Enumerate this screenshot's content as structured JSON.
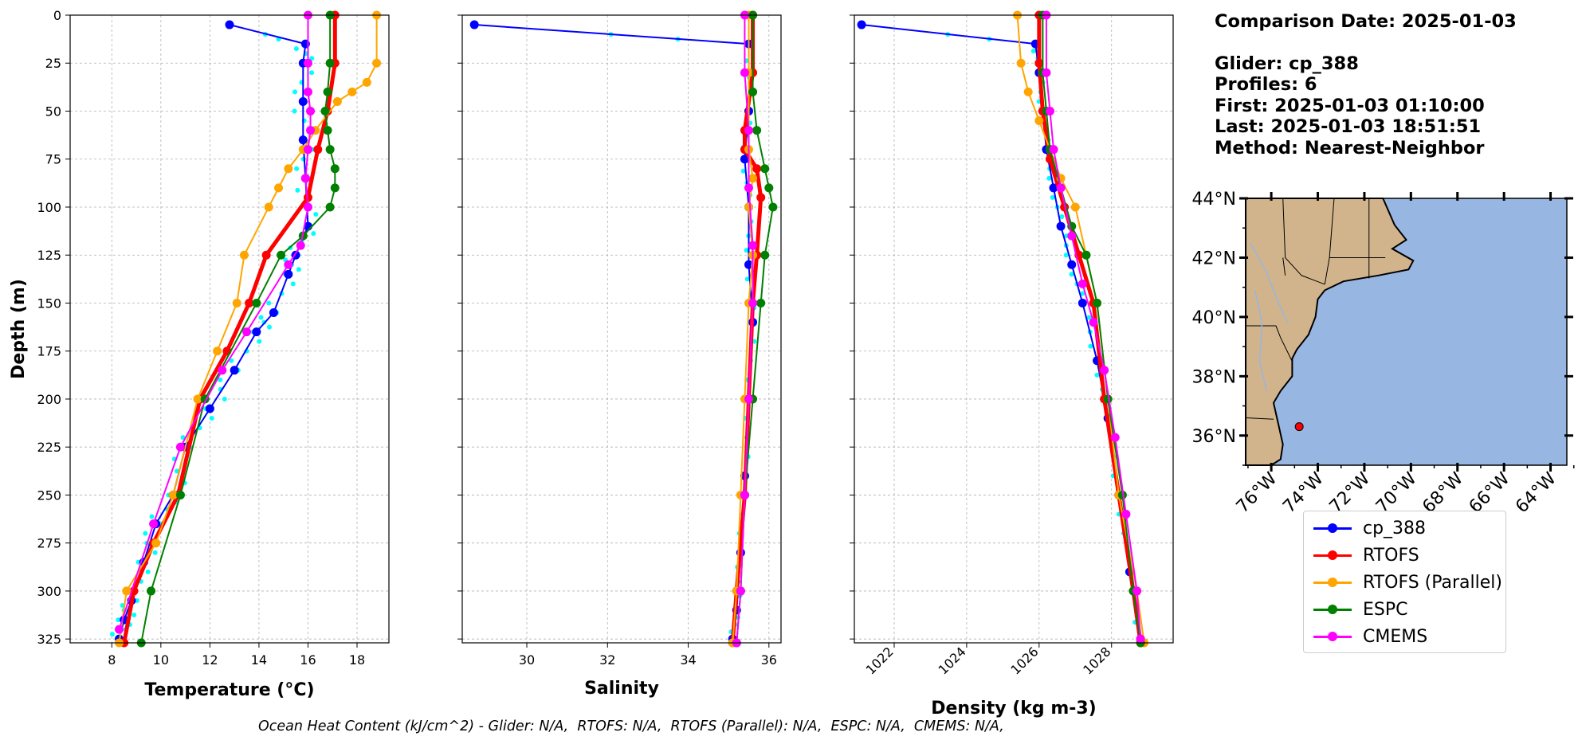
{
  "chart_data": [
    {
      "type": "line",
      "panel": "temperature",
      "xlabel": "Temperature (°C)",
      "ylabel": "Depth (m)",
      "xlim": [
        6.3,
        19.3
      ],
      "ylim": [
        327,
        0
      ],
      "y_inverted": true,
      "xticks": [
        8,
        10,
        12,
        14,
        16,
        18
      ],
      "yticks": [
        0,
        25,
        50,
        75,
        100,
        125,
        150,
        175,
        200,
        225,
        250,
        275,
        300,
        325
      ],
      "grid": true,
      "series": [
        {
          "name": "cp_388",
          "color": "#0000ff",
          "points": [
            [
              12.8,
              5
            ],
            [
              15.9,
              15
            ],
            [
              15.8,
              25
            ],
            [
              15.8,
              45
            ],
            [
              15.8,
              65
            ],
            [
              15.9,
              85
            ],
            [
              16.0,
              110
            ],
            [
              15.5,
              125
            ],
            [
              15.2,
              135
            ],
            [
              14.6,
              155
            ],
            [
              13.9,
              165
            ],
            [
              13.0,
              185
            ],
            [
              12.0,
              205
            ],
            [
              11.0,
              225
            ],
            [
              10.5,
              250
            ],
            [
              9.8,
              265
            ],
            [
              9.3,
              285
            ],
            [
              8.8,
              305
            ],
            [
              8.5,
              315
            ],
            [
              8.3,
              325
            ]
          ]
        },
        {
          "name": "RTOFS",
          "color": "#ff0000",
          "points": [
            [
              17.1,
              0
            ],
            [
              17.1,
              25
            ],
            [
              16.8,
              50
            ],
            [
              16.4,
              70
            ],
            [
              16.0,
              95
            ],
            [
              14.3,
              125
            ],
            [
              13.6,
              150
            ],
            [
              12.7,
              175
            ],
            [
              11.6,
              200
            ],
            [
              10.7,
              250
            ],
            [
              9.7,
              275
            ],
            [
              8.9,
              300
            ],
            [
              8.5,
              327
            ]
          ]
        },
        {
          "name": "RTOFS (Parallel)",
          "color": "#ffa500",
          "points": [
            [
              18.8,
              0
            ],
            [
              18.8,
              25
            ],
            [
              18.4,
              35
            ],
            [
              17.8,
              40
            ],
            [
              17.2,
              45
            ],
            [
              16.3,
              60
            ],
            [
              15.8,
              70
            ],
            [
              15.2,
              80
            ],
            [
              14.8,
              90
            ],
            [
              14.4,
              100
            ],
            [
              13.4,
              125
            ],
            [
              13.1,
              150
            ],
            [
              12.3,
              175
            ],
            [
              11.5,
              200
            ],
            [
              10.5,
              250
            ],
            [
              9.8,
              275
            ],
            [
              8.6,
              300
            ],
            [
              8.3,
              327
            ]
          ]
        },
        {
          "name": "ESPC",
          "color": "#008000",
          "points": [
            [
              16.9,
              0
            ],
            [
              16.9,
              25
            ],
            [
              16.8,
              40
            ],
            [
              16.7,
              50
            ],
            [
              16.8,
              60
            ],
            [
              16.9,
              70
            ],
            [
              17.1,
              80
            ],
            [
              17.1,
              90
            ],
            [
              16.9,
              100
            ],
            [
              15.8,
              115
            ],
            [
              14.9,
              125
            ],
            [
              13.9,
              150
            ],
            [
              11.8,
              200
            ],
            [
              10.8,
              250
            ],
            [
              9.6,
              300
            ],
            [
              9.2,
              327
            ]
          ]
        },
        {
          "name": "CMEMS",
          "color": "#ff00ff",
          "points": [
            [
              16.0,
              0
            ],
            [
              16.0,
              25
            ],
            [
              16.0,
              40
            ],
            [
              16.1,
              50
            ],
            [
              16.1,
              60
            ],
            [
              16.0,
              70
            ],
            [
              15.9,
              85
            ],
            [
              16.0,
              100
            ],
            [
              15.7,
              120
            ],
            [
              15.2,
              130
            ],
            [
              13.5,
              165
            ],
            [
              12.5,
              185
            ],
            [
              10.8,
              225
            ],
            [
              9.7,
              265
            ],
            [
              8.3,
              320
            ]
          ]
        }
      ]
    },
    {
      "type": "line",
      "panel": "salinity",
      "xlabel": "Salinity",
      "ylim": [
        327,
        0
      ],
      "xlim": [
        28.4,
        36.3
      ],
      "xticks": [
        30,
        32,
        34,
        36
      ],
      "grid": true,
      "series": [
        {
          "name": "cp_388",
          "color": "#0000ff",
          "points": [
            [
              28.7,
              5
            ],
            [
              35.5,
              15
            ],
            [
              35.5,
              50
            ],
            [
              35.4,
              75
            ],
            [
              35.5,
              100
            ],
            [
              35.5,
              130
            ],
            [
              35.6,
              160
            ],
            [
              35.5,
              200
            ],
            [
              35.4,
              240
            ],
            [
              35.3,
              280
            ],
            [
              35.2,
              310
            ],
            [
              35.1,
              325
            ]
          ]
        },
        {
          "name": "RTOFS",
          "color": "#ff0000",
          "points": [
            [
              35.6,
              0
            ],
            [
              35.6,
              30
            ],
            [
              35.4,
              60
            ],
            [
              35.4,
              70
            ],
            [
              35.7,
              80
            ],
            [
              35.8,
              95
            ],
            [
              35.7,
              125
            ],
            [
              35.6,
              150
            ],
            [
              35.5,
              200
            ],
            [
              35.4,
              250
            ],
            [
              35.2,
              300
            ],
            [
              35.1,
              327
            ]
          ]
        },
        {
          "name": "RTOFS (Parallel)",
          "color": "#ffa500",
          "points": [
            [
              35.5,
              0
            ],
            [
              35.5,
              30
            ],
            [
              35.5,
              70
            ],
            [
              35.6,
              85
            ],
            [
              35.5,
              100
            ],
            [
              35.6,
              125
            ],
            [
              35.5,
              150
            ],
            [
              35.4,
              200
            ],
            [
              35.3,
              250
            ],
            [
              35.2,
              300
            ],
            [
              35.1,
              327
            ]
          ]
        },
        {
          "name": "ESPC",
          "color": "#008000",
          "points": [
            [
              35.6,
              0
            ],
            [
              35.6,
              40
            ],
            [
              35.7,
              60
            ],
            [
              35.9,
              80
            ],
            [
              36.0,
              90
            ],
            [
              36.1,
              100
            ],
            [
              35.9,
              125
            ],
            [
              35.8,
              150
            ],
            [
              35.6,
              200
            ],
            [
              35.4,
              250
            ],
            [
              35.3,
              300
            ],
            [
              35.2,
              327
            ]
          ]
        },
        {
          "name": "CMEMS",
          "color": "#ff00ff",
          "points": [
            [
              35.4,
              0
            ],
            [
              35.4,
              30
            ],
            [
              35.5,
              60
            ],
            [
              35.5,
              90
            ],
            [
              35.6,
              120
            ],
            [
              35.6,
              150
            ],
            [
              35.5,
              200
            ],
            [
              35.4,
              250
            ],
            [
              35.3,
              300
            ],
            [
              35.2,
              327
            ]
          ]
        }
      ]
    },
    {
      "type": "line",
      "panel": "density",
      "xlabel": "Density (kg m-3)",
      "ylim": [
        327,
        0
      ],
      "xlim": [
        1020.9,
        1029.7
      ],
      "xticks": [
        1022,
        1024,
        1026,
        1028
      ],
      "grid": true,
      "series": [
        {
          "name": "cp_388",
          "color": "#0000ff",
          "points": [
            [
              1021.1,
              5
            ],
            [
              1025.9,
              15
            ],
            [
              1026.0,
              30
            ],
            [
              1026.1,
              50
            ],
            [
              1026.2,
              70
            ],
            [
              1026.4,
              90
            ],
            [
              1026.6,
              110
            ],
            [
              1026.9,
              130
            ],
            [
              1027.2,
              150
            ],
            [
              1027.6,
              180
            ],
            [
              1027.9,
              210
            ],
            [
              1028.2,
              250
            ],
            [
              1028.5,
              290
            ],
            [
              1028.8,
              325
            ]
          ]
        },
        {
          "name": "RTOFS",
          "color": "#ff0000",
          "points": [
            [
              1026.0,
              0
            ],
            [
              1026.0,
              25
            ],
            [
              1026.1,
              50
            ],
            [
              1026.3,
              75
            ],
            [
              1026.7,
              100
            ],
            [
              1027.1,
              125
            ],
            [
              1027.5,
              150
            ],
            [
              1027.8,
              200
            ],
            [
              1028.2,
              250
            ],
            [
              1028.6,
              300
            ],
            [
              1028.8,
              327
            ]
          ]
        },
        {
          "name": "RTOFS (Parallel)",
          "color": "#ffa500",
          "points": [
            [
              1025.4,
              0
            ],
            [
              1025.5,
              25
            ],
            [
              1025.7,
              40
            ],
            [
              1026.0,
              55
            ],
            [
              1026.3,
              70
            ],
            [
              1026.6,
              85
            ],
            [
              1027.0,
              100
            ],
            [
              1027.3,
              125
            ],
            [
              1027.6,
              150
            ],
            [
              1027.9,
              200
            ],
            [
              1028.2,
              250
            ],
            [
              1028.7,
              300
            ],
            [
              1028.9,
              327
            ]
          ]
        },
        {
          "name": "ESPC",
          "color": "#008000",
          "points": [
            [
              1026.1,
              0
            ],
            [
              1026.1,
              30
            ],
            [
              1026.2,
              50
            ],
            [
              1026.3,
              70
            ],
            [
              1026.6,
              90
            ],
            [
              1026.9,
              110
            ],
            [
              1027.3,
              125
            ],
            [
              1027.6,
              150
            ],
            [
              1027.9,
              200
            ],
            [
              1028.3,
              250
            ],
            [
              1028.6,
              300
            ],
            [
              1028.8,
              327
            ]
          ]
        },
        {
          "name": "CMEMS",
          "color": "#ff00ff",
          "points": [
            [
              1026.2,
              0
            ],
            [
              1026.2,
              30
            ],
            [
              1026.3,
              50
            ],
            [
              1026.4,
              70
            ],
            [
              1026.6,
              90
            ],
            [
              1026.9,
              115
            ],
            [
              1027.2,
              140
            ],
            [
              1027.5,
              160
            ],
            [
              1027.8,
              185
            ],
            [
              1028.1,
              220
            ],
            [
              1028.4,
              260
            ],
            [
              1028.7,
              300
            ],
            [
              1028.8,
              325
            ]
          ]
        }
      ]
    },
    {
      "type": "map",
      "panel": "location",
      "lon_range": [
        -77.1,
        -63.3
      ],
      "lat_range": [
        35.0,
        44.0
      ],
      "xticks": [
        "76°W",
        "74°W",
        "72°W",
        "70°W",
        "68°W",
        "66°W",
        "64°W"
      ],
      "yticks": [
        "44°N",
        "42°N",
        "40°N",
        "38°N",
        "36°N"
      ],
      "glider_position": {
        "lon": -74.8,
        "lat": 36.3
      },
      "land_color": "#d2b48c",
      "ocean_color": "#97b6e1"
    }
  ],
  "info": {
    "comparison_date": "Comparison Date: 2025-01-03",
    "glider": "Glider: cp_388",
    "profiles": "Profiles: 6",
    "first": "First: 2025-01-03 01:10:00",
    "last": "Last: 2025-01-03 18:51:51",
    "method": "Method: Nearest-Neighbor"
  },
  "legend": [
    {
      "label": "cp_388",
      "color": "#0000ff"
    },
    {
      "label": "RTOFS",
      "color": "#ff0000"
    },
    {
      "label": "RTOFS (Parallel)",
      "color": "#ffa500"
    },
    {
      "label": "ESPC",
      "color": "#008000"
    },
    {
      "label": "CMEMS",
      "color": "#ff00ff"
    }
  ],
  "footer": "Ocean Heat Content (kJ/cm^2) - Glider: N/A,  RTOFS: N/A,  RTOFS (Parallel): N/A,  ESPC: N/A,  CMEMS: N/A,"
}
